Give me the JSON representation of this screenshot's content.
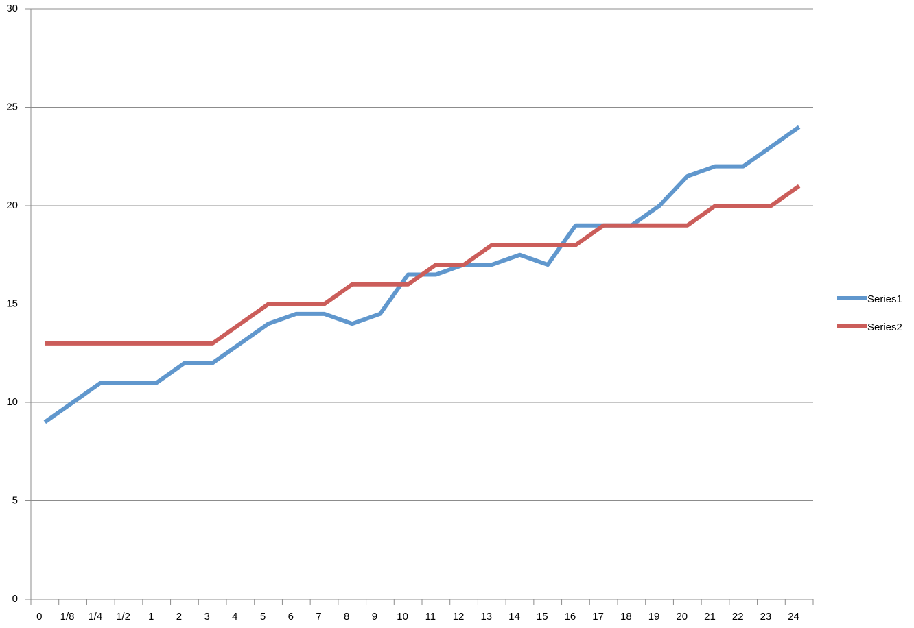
{
  "chart_data": {
    "type": "line",
    "categories": [
      "0",
      "1/8",
      "1/4",
      "1/2",
      "1",
      "2",
      "3",
      "4",
      "5",
      "6",
      "7",
      "8",
      "9",
      "10",
      "11",
      "12",
      "13",
      "14",
      "15",
      "16",
      "17",
      "18",
      "19",
      "20",
      "21",
      "22",
      "23",
      "24"
    ],
    "series": [
      {
        "name": "Series1",
        "color": "#6097cd",
        "values": [
          9,
          10,
          11,
          11,
          11,
          12,
          12,
          13,
          14,
          14.5,
          14.5,
          14,
          14.5,
          16.5,
          16.5,
          17,
          17,
          17.5,
          17,
          19,
          19,
          19,
          20,
          21.5,
          22,
          22,
          23,
          24
        ]
      },
      {
        "name": "Series2",
        "color": "#cb5d5a",
        "values": [
          13,
          13,
          13,
          13,
          13,
          13,
          13,
          14,
          15,
          15,
          15,
          16,
          16,
          16,
          17,
          17,
          18,
          18,
          18,
          18,
          19,
          19,
          19,
          19,
          20,
          20,
          20,
          21
        ]
      }
    ],
    "ylim": [
      0,
      30
    ],
    "yticks": [
      0,
      5,
      10,
      15,
      20,
      25,
      30
    ],
    "grid": true,
    "legend": "right"
  }
}
